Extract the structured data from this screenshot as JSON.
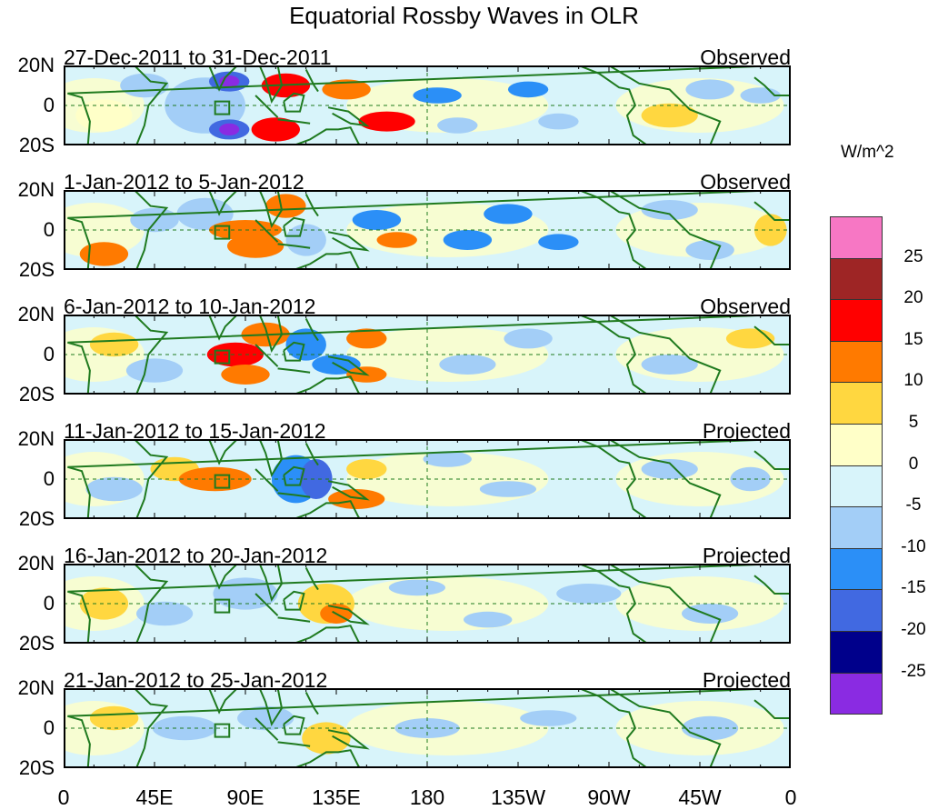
{
  "title": "Equatorial Rossby Waves in OLR",
  "lat_labels": [
    "20N",
    "0",
    "20S"
  ],
  "lon_labels": [
    "0",
    "45E",
    "90E",
    "135E",
    "180",
    "135W",
    "90W",
    "45W",
    "0"
  ],
  "panels": [
    {
      "dates": "27-Dec-2011 to 31-Dec-2011",
      "status": "Observed"
    },
    {
      "dates": "1-Jan-2012 to 5-Jan-2012",
      "status": "Observed"
    },
    {
      "dates": "6-Jan-2012 to 10-Jan-2012",
      "status": "Observed"
    },
    {
      "dates": "11-Jan-2012 to 15-Jan-2012",
      "status": "Projected"
    },
    {
      "dates": "16-Jan-2012 to 20-Jan-2012",
      "status": "Projected"
    },
    {
      "dates": "21-Jan-2012 to 25-Jan-2012",
      "status": "Projected"
    }
  ],
  "colorbar": {
    "unit": "W/m^2",
    "colors": [
      "#f777c4",
      "#9e2525",
      "#ff0000",
      "#ff7a00",
      "#ffd740",
      "#ffffc8",
      "#d8f4fa",
      "#a3cef7",
      "#2b8ff7",
      "#4169e1",
      "#00008b",
      "#8a2be2"
    ],
    "labels": [
      "25",
      "20",
      "15",
      "10",
      "5",
      "0",
      "-5",
      "-10",
      "-15",
      "-20",
      "-25"
    ]
  },
  "colors": {
    "coast": "#1f7a1f",
    "frame": "#000000",
    "dash": "#1f7a1f"
  }
}
